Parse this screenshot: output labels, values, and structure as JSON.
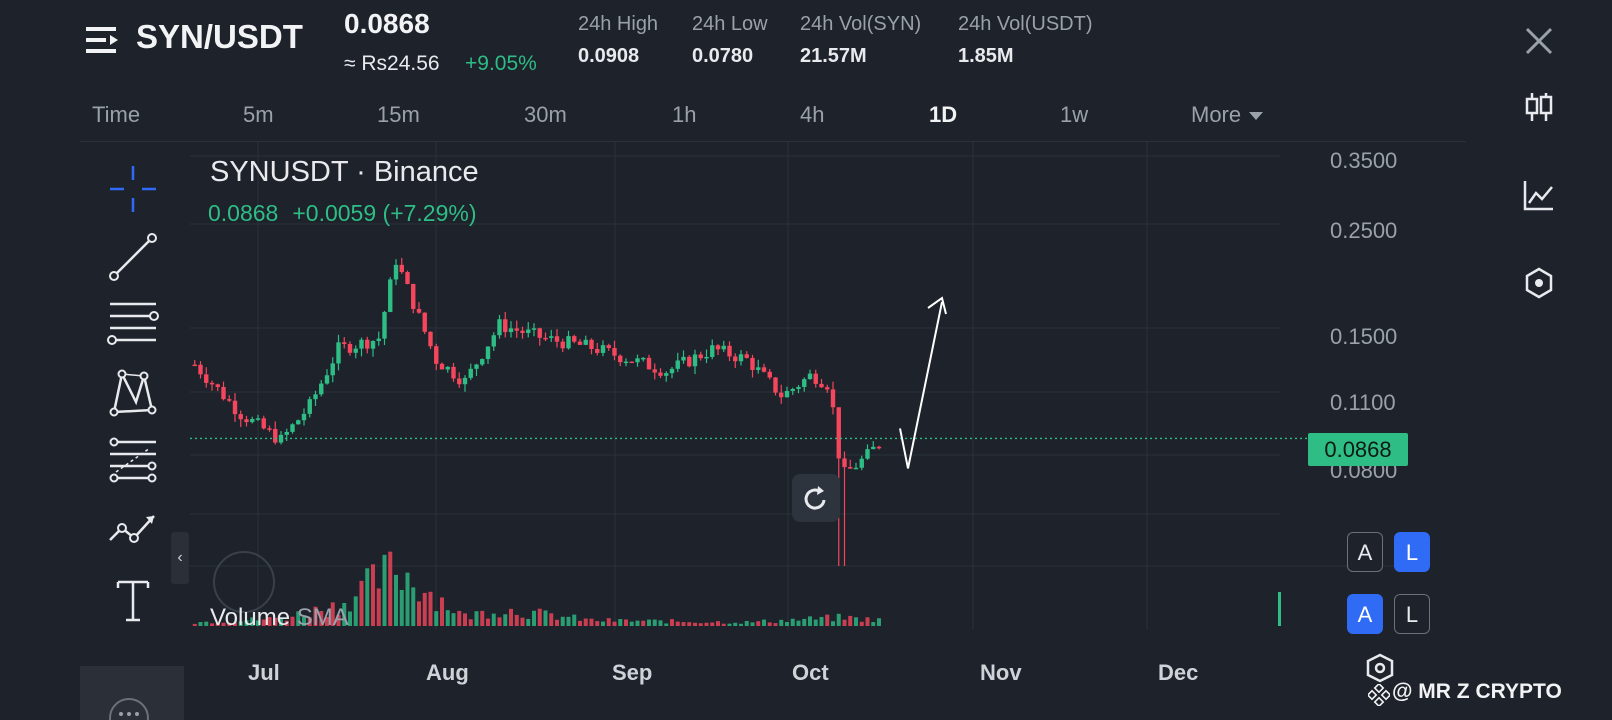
{
  "header": {
    "pair": "SYN/USDT",
    "last_price": "0.0868",
    "fiat_price": "≈ Rs24.56",
    "change_pct": "+9.05%",
    "stats": [
      {
        "label": "24h High",
        "value": "0.0908"
      },
      {
        "label": "24h Low",
        "value": "0.0780"
      },
      {
        "label": "24h Vol(SYN)",
        "value": "21.57M"
      },
      {
        "label": "24h Vol(USDT)",
        "value": "1.85M"
      }
    ]
  },
  "timeframes": [
    {
      "label": "Time",
      "active": false
    },
    {
      "label": "5m",
      "active": false
    },
    {
      "label": "15m",
      "active": false
    },
    {
      "label": "30m",
      "active": false
    },
    {
      "label": "1h",
      "active": false
    },
    {
      "label": "4h",
      "active": false
    },
    {
      "label": "1D",
      "active": true
    },
    {
      "label": "1w",
      "active": false
    },
    {
      "label": "More",
      "active": false
    }
  ],
  "chart": {
    "title": "SYNUSDT · Binance",
    "ohlc_price": "0.0868",
    "ohlc_change": "+0.0059 (+7.29%)",
    "volume_label": "Volume",
    "volume_sma": "SMA",
    "y_ticks": [
      "0.3500",
      "0.2500",
      "0.1500",
      "0.1100",
      "0.0800"
    ],
    "current_price_tag": "0.0868",
    "x_ticks": [
      "Jul",
      "Aug",
      "Sep",
      "Oct",
      "Nov",
      "Dec"
    ],
    "colors": {
      "up": "#2ebd85",
      "down": "#f6465d",
      "accent": "#2f6bf5"
    }
  },
  "scale_buttons": {
    "row1": [
      "A",
      "L"
    ],
    "row2": [
      "A",
      "L"
    ]
  },
  "watermark": "@ MR Z CRYPTO",
  "icons": {
    "left_tools": [
      "crosshair-icon",
      "trendline-icon",
      "horizontal-lines-icon",
      "pattern-icon",
      "fib-icon",
      "polyline-icon",
      "text-icon"
    ],
    "right_tools": [
      "candlestick-icon",
      "indicator-icon",
      "settings-hex-icon"
    ]
  },
  "chart_data": {
    "type": "line",
    "title": "SYNUSDT · Binance",
    "xlabel": "",
    "ylabel": "",
    "x_ticks": [
      "Jul",
      "Aug",
      "Sep",
      "Oct",
      "Nov",
      "Dec"
    ],
    "y_scale": "log",
    "ylim": [
      0.06,
      0.35
    ],
    "series": [
      {
        "x": [
          "Jun 20",
          "Jun 28",
          "Jul 5",
          "Jul 10",
          "Jul 15",
          "Jul 22",
          "Jul 25",
          "Aug 1",
          "Aug 6",
          "Aug 12",
          "Aug 20",
          "Aug 28",
          "Sep 3",
          "Sep 10",
          "Sep 18",
          "Sep 24",
          "Sep 30",
          "Oct 5",
          "Oct 8",
          "Oct 10",
          "Oct 14",
          "Oct 17"
        ],
        "values": [
          0.125,
          0.098,
          0.086,
          0.102,
          0.135,
          0.142,
          0.21,
          0.128,
          0.115,
          0.152,
          0.142,
          0.136,
          0.129,
          0.121,
          0.135,
          0.128,
          0.107,
          0.119,
          0.113,
          0.072,
          0.079,
          0.0868
        ]
      }
    ],
    "volume": {
      "x": [
        "Jun 20",
        "Jul 5",
        "Jul 15",
        "Jul 25",
        "Aug 6",
        "Aug 12",
        "Aug 28",
        "Sep 10",
        "Sep 24",
        "Oct 10",
        "Oct 17"
      ],
      "values": [
        4,
        8,
        22,
        62,
        10,
        18,
        6,
        5,
        4,
        9,
        6
      ]
    },
    "current_price": 0.0868,
    "grid": true,
    "legend": "none"
  }
}
